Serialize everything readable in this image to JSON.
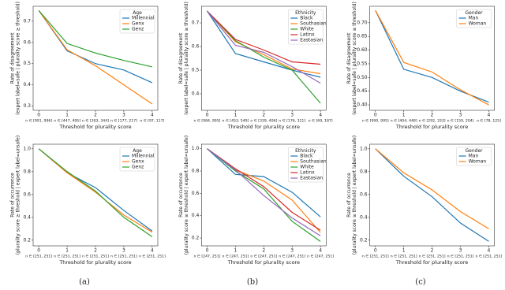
{
  "chart_data": [
    {
      "type": "line",
      "ylabel": [
        "Rate of disagreement",
        "(expert label=safe | plurality score ≥ threshold)"
      ],
      "xlabel": "Threshold for plurality score",
      "x": [
        0,
        1,
        2,
        3,
        4
      ],
      "xlim": [
        -0.2,
        4.2
      ],
      "xticks": [
        0,
        1,
        2,
        3,
        4
      ],
      "xtick_notes": [
        "n ∈ [991, 996]",
        "n ∈ [447, 495]",
        "n ∈ [303, 344]",
        "n ∈ [177, 217]",
        "n ∈ [97, 117]"
      ],
      "ylim": [
        0.28,
        0.77
      ],
      "yticks": [
        0.3,
        0.4,
        0.5,
        0.6,
        0.7
      ],
      "legend_title": "Age",
      "legend": "upper right",
      "series": [
        {
          "name": "Millennial",
          "color": "#1f77b4",
          "values": [
            0.75,
            0.56,
            0.5,
            0.47,
            0.41
          ]
        },
        {
          "name": "Genx",
          "color": "#ff7f0e",
          "values": [
            0.75,
            0.565,
            0.49,
            0.4,
            0.31
          ]
        },
        {
          "name": "Genz",
          "color": "#2ca02c",
          "values": [
            0.75,
            0.595,
            0.55,
            0.515,
            0.485
          ]
        }
      ]
    },
    {
      "type": "line",
      "ylabel": [
        "Rate of disagreement",
        "(expert label=safe | plurality score ≥ threshold)"
      ],
      "xlabel": "Threshold for plurality score",
      "x": [
        0,
        1,
        2,
        3,
        4
      ],
      "xlim": [
        -0.2,
        4.2
      ],
      "xticks": [
        0,
        1,
        2,
        3,
        4
      ],
      "xtick_notes": [
        "n ∈ [984, 995]",
        "n ∈ [453, 549]",
        "n ∈ [339, 406]",
        "n ∈ [176, 311]",
        "n ∈ [69, 187]"
      ],
      "ylim": [
        0.33,
        0.77
      ],
      "yticks": [
        0.4,
        0.5,
        0.6,
        0.7
      ],
      "legend_title": "Ethnicity",
      "legend": "upper right",
      "series": [
        {
          "name": "Black",
          "color": "#1f77b4",
          "values": [
            0.75,
            0.57,
            0.535,
            0.5,
            0.47
          ]
        },
        {
          "name": "Southasian",
          "color": "#ff7f0e",
          "values": [
            0.75,
            0.62,
            0.565,
            0.505,
            0.485
          ]
        },
        {
          "name": "White",
          "color": "#2ca02c",
          "values": [
            0.75,
            0.625,
            0.555,
            0.5,
            0.36
          ]
        },
        {
          "name": "Latinx",
          "color": "#d62728",
          "values": [
            0.75,
            0.63,
            0.585,
            0.535,
            0.525
          ]
        },
        {
          "name": "Eastasian",
          "color": "#9467bd",
          "values": [
            0.75,
            0.605,
            0.575,
            0.515,
            0.445
          ]
        }
      ]
    },
    {
      "type": "line",
      "ylabel": [
        "Rate of disagreement",
        "(expert label=safe | plurality score ≥ threshold)"
      ],
      "xlabel": "Threshold for plurality score",
      "x": [
        0,
        1,
        2,
        3,
        4
      ],
      "xlim": [
        -0.2,
        4.2
      ],
      "xticks": [
        0,
        1,
        2,
        3,
        4
      ],
      "xtick_notes": [
        "n ∈ [990, 995]",
        "n ∈ [404, 448]",
        "n ∈ [292, 333]",
        "n ∈ [159, 204]",
        "n ∈ [78, 125]"
      ],
      "ylim": [
        0.38,
        0.76
      ],
      "yticks": [
        {
          "value": 0.4,
          "label": "0.40"
        },
        0.45,
        {
          "value": 0.5,
          "label": "0.50"
        },
        0.55,
        {
          "value": 0.6,
          "label": "0.60"
        },
        0.65,
        {
          "value": 0.7,
          "label": "0.70"
        }
      ],
      "legend_title": "Gender",
      "legend": "upper right",
      "series": [
        {
          "name": "Man",
          "color": "#1f77b4",
          "values": [
            0.745,
            0.53,
            0.5,
            0.45,
            0.41
          ]
        },
        {
          "name": "Woman",
          "color": "#ff7f0e",
          "values": [
            0.745,
            0.555,
            0.52,
            0.455,
            0.4
          ]
        }
      ]
    },
    {
      "type": "line",
      "ylabel": [
        "Rate of occurrence",
        "(plurality score ≥ threshold | expert label=unsafe)"
      ],
      "xlabel": "Threshold for plurality score",
      "x": [
        0,
        1,
        2,
        3,
        4
      ],
      "xlim": [
        -0.2,
        4.2
      ],
      "xticks": [
        0,
        1,
        2,
        3,
        4
      ],
      "xtick_notes": [
        "n ∈ [251, 251]",
        "n ∈ [251, 251]",
        "n ∈ [251, 251]",
        "n ∈ [251, 251]",
        "n ∈ [251, 251]"
      ],
      "ylim": [
        0.15,
        1.04
      ],
      "yticks": [
        0.2,
        0.4,
        0.6,
        0.8,
        {
          "value": 1,
          "label": "1.0"
        }
      ],
      "legend_title": "Age",
      "legend": "upper right",
      "series": [
        {
          "name": "Millennial",
          "color": "#1f77b4",
          "values": [
            1,
            0.79,
            0.66,
            0.46,
            0.28
          ]
        },
        {
          "name": "Genx",
          "color": "#ff7f0e",
          "values": [
            1,
            0.79,
            0.62,
            0.42,
            0.27
          ]
        },
        {
          "name": "Genz",
          "color": "#2ca02c",
          "values": [
            1,
            0.8,
            0.63,
            0.4,
            0.23
          ]
        }
      ]
    },
    {
      "type": "line",
      "ylabel": [
        "Rate of occurrence",
        "(plurality score ≥ threshold | expert label=unsafe)"
      ],
      "xlabel": "Threshold for plurality score",
      "x": [
        0,
        1,
        2,
        3,
        4
      ],
      "xlim": [
        -0.2,
        4.2
      ],
      "xticks": [
        0,
        1,
        2,
        3,
        4
      ],
      "xtick_notes": [
        "n ∈ [247, 251]",
        "n ∈ [247, 251]",
        "n ∈ [247, 251]",
        "n ∈ [247, 251]",
        "n ∈ [247, 251]"
      ],
      "ylim": [
        0.13,
        1.04
      ],
      "yticks": [
        0.2,
        0.4,
        0.6,
        0.8,
        {
          "value": 1,
          "label": "1.0"
        }
      ],
      "legend_title": "Ethnicity",
      "legend": "upper right",
      "series": [
        {
          "name": "Black",
          "color": "#1f77b4",
          "values": [
            1,
            0.77,
            0.75,
            0.61,
            0.39
          ]
        },
        {
          "name": "Southasian",
          "color": "#ff7f0e",
          "values": [
            1,
            0.81,
            0.71,
            0.54,
            0.25
          ]
        },
        {
          "name": "White",
          "color": "#2ca02c",
          "values": [
            1,
            0.8,
            0.64,
            0.35,
            0.17
          ]
        },
        {
          "name": "Latinx",
          "color": "#d62728",
          "values": [
            1,
            0.82,
            0.66,
            0.43,
            0.27
          ]
        },
        {
          "name": "Eastasian",
          "color": "#9467bd",
          "values": [
            1,
            0.81,
            0.58,
            0.38,
            0.22
          ]
        }
      ]
    },
    {
      "type": "line",
      "ylabel": [
        "Rate of occurrence",
        "(plurality score ≥ threshold | expert label=unsafe)"
      ],
      "xlabel": "Threshold for plurality score",
      "x": [
        0,
        1,
        2,
        3,
        4
      ],
      "xlim": [
        -0.2,
        4.2
      ],
      "xticks": [
        0,
        1,
        2,
        3,
        4
      ],
      "xtick_notes": [
        "n ∈ [251, 251]",
        "n ∈ [251, 251]",
        "n ∈ [251, 251]",
        "n ∈ [251, 251]",
        "n ∈ [251, 251]"
      ],
      "ylim": [
        0.15,
        1.04
      ],
      "yticks": [
        0.2,
        0.4,
        0.6,
        0.8,
        {
          "value": 1,
          "label": "1.0"
        }
      ],
      "legend_title": "Gender",
      "legend": "upper right",
      "series": [
        {
          "name": "Man",
          "color": "#1f77b4",
          "values": [
            1,
            0.76,
            0.58,
            0.35,
            0.19
          ]
        },
        {
          "name": "Woman",
          "color": "#ff7f0e",
          "values": [
            1,
            0.79,
            0.64,
            0.45,
            0.3
          ]
        }
      ]
    }
  ],
  "captions": [
    "(a)",
    "(b)",
    "(c)"
  ]
}
